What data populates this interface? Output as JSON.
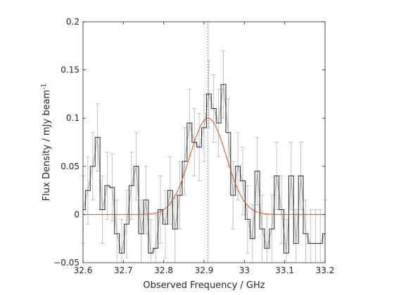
{
  "chart_data": {
    "type": "line",
    "xlabel": "Observed Frequency / GHz",
    "ylabel_main": "Flux Density / mJy beam",
    "ylabel_sup": "-1",
    "xlim": [
      32.6,
      33.2
    ],
    "ylim": [
      -0.05,
      0.2
    ],
    "grid": false,
    "legend": "none",
    "x_ticks": [
      {
        "value": 32.6,
        "label": "32.6"
      },
      {
        "value": 32.7,
        "label": "32.7"
      },
      {
        "value": 32.8,
        "label": "32.8"
      },
      {
        "value": 32.9,
        "label": "32.9"
      },
      {
        "value": 33.0,
        "label": "33"
      },
      {
        "value": 33.1,
        "label": "33.1"
      },
      {
        "value": 33.2,
        "label": "33.2"
      }
    ],
    "y_ticks": [
      {
        "value": -0.05,
        "label": "−0.05"
      },
      {
        "value": 0.0,
        "label": "0"
      },
      {
        "value": 0.05,
        "label": "0.05"
      },
      {
        "value": 0.1,
        "label": "0.1"
      },
      {
        "value": 0.15,
        "label": "0.15"
      },
      {
        "value": 0.2,
        "label": "0.2"
      }
    ],
    "spectrum": {
      "x": [
        32.6,
        32.612,
        32.624,
        32.636,
        32.648,
        32.66,
        32.672,
        32.684,
        32.696,
        32.708,
        32.72,
        32.732,
        32.744,
        32.756,
        32.768,
        32.78,
        32.792,
        32.804,
        32.816,
        32.828,
        32.84,
        32.852,
        32.864,
        32.876,
        32.888,
        32.9,
        32.912,
        32.924,
        32.936,
        32.948,
        32.96,
        32.972,
        32.984,
        32.996,
        33.008,
        33.02,
        33.032,
        33.044,
        33.056,
        33.068,
        33.08,
        33.092,
        33.104,
        33.116,
        33.128,
        33.14,
        33.152,
        33.164,
        33.176,
        33.188,
        33.2
      ],
      "y": [
        0.005,
        0.025,
        0.05,
        0.08,
        0.005,
        0.03,
        0.028,
        -0.02,
        -0.04,
        -0.01,
        0.03,
        0.05,
        -0.02,
        0.015,
        -0.04,
        -0.035,
        0.005,
        -0.01,
        0.025,
        -0.015,
        0.02,
        0.055,
        0.095,
        0.075,
        0.07,
        0.09,
        0.125,
        0.11,
        0.095,
        0.135,
        0.085,
        0.02,
        0.05,
        0.035,
        -0.005,
        -0.025,
        0.045,
        -0.015,
        -0.035,
        -0.015,
        0.04,
        0.005,
        -0.04,
        0.04,
        -0.03,
        0.04,
        -0.02,
        -0.03,
        -0.03,
        -0.03,
        -0.02
      ],
      "err": [
        0.035,
        0.035,
        0.035,
        0.035,
        0.035,
        0.035,
        0.035,
        0.035,
        0.035,
        0.035,
        0.035,
        0.035,
        0.035,
        0.035,
        0.035,
        0.035,
        0.035,
        0.035,
        0.035,
        0.035,
        0.035,
        0.035,
        0.035,
        0.035,
        0.035,
        0.035,
        0.035,
        0.035,
        0.035,
        0.035,
        0.035,
        0.035,
        0.035,
        0.035,
        0.035,
        0.035,
        0.035,
        0.035,
        0.035,
        0.035,
        0.035,
        0.035,
        0.035,
        0.035,
        0.035,
        0.035,
        0.035,
        0.035,
        0.035,
        0.035,
        0.035
      ]
    },
    "gaussian_fit": {
      "amplitude": 0.1,
      "center": 32.91,
      "sigma": 0.045
    },
    "line_center": 32.91,
    "colors": {
      "spectrum": "#262626",
      "trace": "#999999",
      "errorbars": "#b4b4b4",
      "fit": "#d95319",
      "center_marker": "#cc2222",
      "axes": "#262626"
    }
  }
}
